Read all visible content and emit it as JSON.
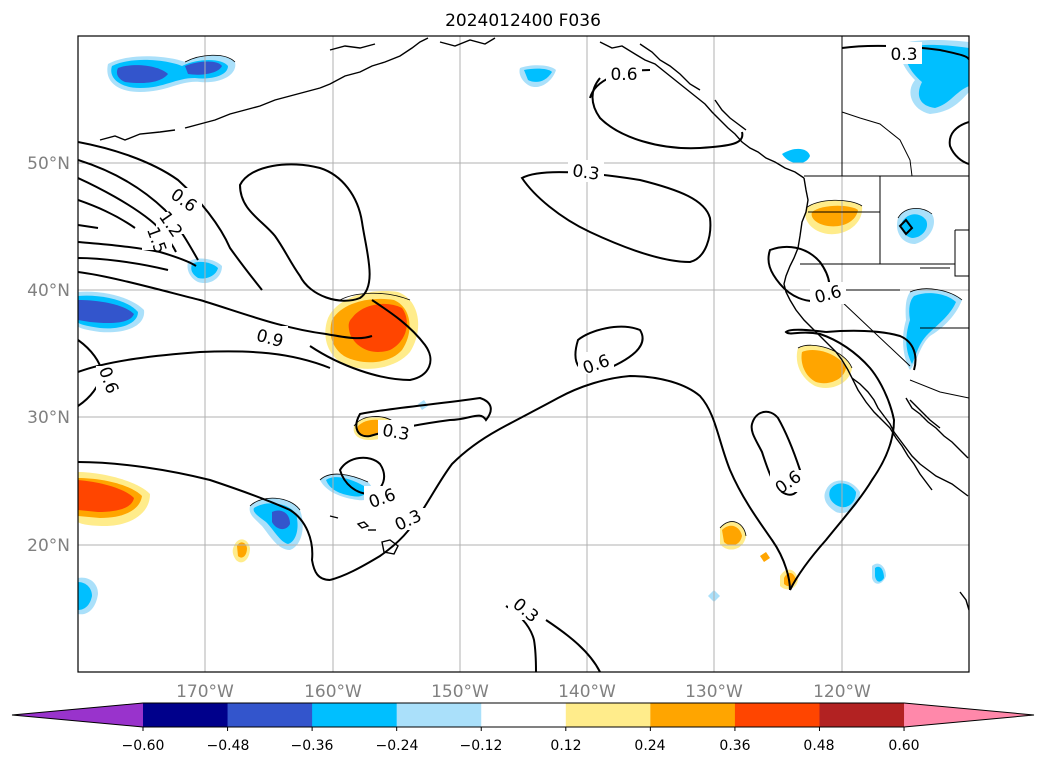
{
  "title": "2024012400 F036",
  "map": {
    "lat_labels": [
      "50°N",
      "40°N",
      "30°N",
      "20°N"
    ],
    "lon_labels": [
      "170°W",
      "160°W",
      "150°W",
      "140°W",
      "130°W",
      "120°W"
    ],
    "gridlines": true
  },
  "colorbar": {
    "extend": "both",
    "colors": [
      "#9933cc",
      "#00008b",
      "#3355cc",
      "#00bfff",
      "#aae0fa",
      "#ffffff",
      "#ffec8b",
      "#ffa500",
      "#ff4500",
      "#b22222",
      "#ff88aa"
    ],
    "tick_labels": [
      "−0.60",
      "−0.48",
      "−0.36",
      "−0.24",
      "−0.12",
      "0.12",
      "0.24",
      "0.36",
      "0.48",
      "0.60"
    ]
  },
  "contour_labels": [
    "0.6",
    "0.3",
    "0.3",
    "0.6",
    "1.2",
    "1.5",
    "0.9",
    "0.6",
    "0.6",
    "0.6",
    "0.3",
    "0.6",
    "0.3",
    "0.6",
    "0.3"
  ]
}
